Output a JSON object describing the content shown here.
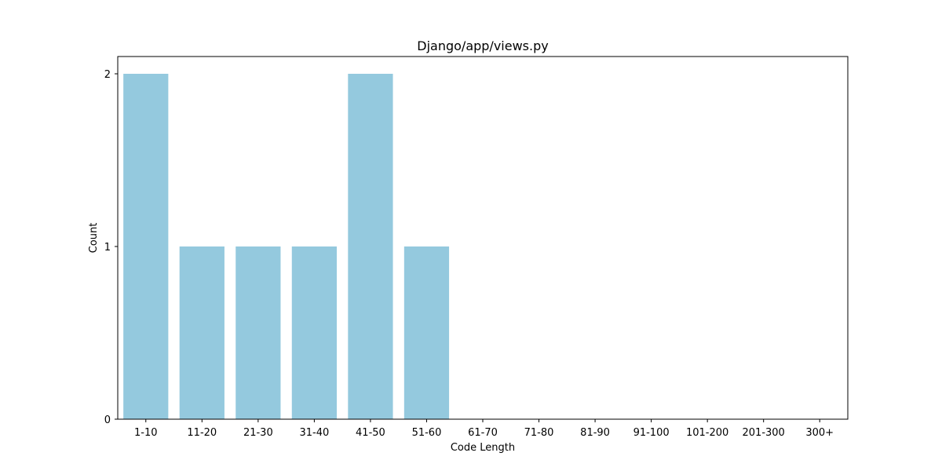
{
  "chart_data": {
    "type": "bar",
    "title": "Django/app/views.py",
    "xlabel": "Code Length",
    "ylabel": "Count",
    "categories": [
      "1-10",
      "11-20",
      "21-30",
      "31-40",
      "41-50",
      "51-60",
      "61-70",
      "71-80",
      "81-90",
      "91-100",
      "101-200",
      "201-300",
      "300+"
    ],
    "values": [
      2,
      1,
      1,
      1,
      2,
      1,
      0,
      0,
      0,
      0,
      0,
      0,
      0
    ],
    "ylim": [
      0,
      2.1
    ],
    "yticks": [
      0,
      1,
      2
    ],
    "grid": false,
    "legend": "none",
    "bar_color": "#94c9de",
    "axis_color": "#000000",
    "background": "#ffffff"
  }
}
